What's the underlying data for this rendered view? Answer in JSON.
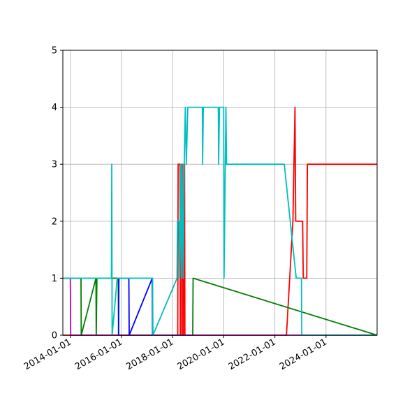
{
  "chart_data": {
    "type": "line",
    "title": "",
    "xlabel": "",
    "ylabel": "",
    "x_is_date": true,
    "xlim": [
      "2013-09-15",
      "2025-12-31"
    ],
    "ylim": [
      0,
      5
    ],
    "grid": true,
    "x_ticks": [
      "2014-01-01",
      "2016-01-01",
      "2018-01-01",
      "2020-01-01",
      "2022-01-01",
      "2024-01-01"
    ],
    "y_ticks": [
      0,
      1,
      2,
      3,
      4,
      5
    ],
    "series": [
      {
        "color": "#ff0000",
        "x": [
          "2013-09-15",
          "2018-03-15",
          "2018-03-20",
          "2018-04-15",
          "2018-04-20",
          "2018-05-01",
          "2018-05-05",
          "2018-05-20",
          "2018-05-25",
          "2018-06-05",
          "2018-06-10",
          "2018-06-20",
          "2018-06-25",
          "2022-06-15",
          "2022-09-15",
          "2022-10-15",
          "2022-10-25",
          "2023-02-01",
          "2023-02-10",
          "2023-04-01",
          "2023-04-10",
          "2025-12-31"
        ],
        "y": [
          0,
          0,
          3,
          3,
          0,
          0,
          3,
          3,
          0,
          0,
          3,
          3,
          0,
          0,
          2,
          4,
          2,
          2,
          1,
          1,
          3,
          3
        ]
      },
      {
        "color": "#008000",
        "x": [
          "2013-09-15",
          "2014-06-01",
          "2014-06-05",
          "2015-01-01",
          "2015-01-05",
          "2015-01-15",
          "2015-11-15",
          "2015-11-20",
          "2018-10-15",
          "2018-10-20",
          "2025-12-31"
        ],
        "y": [
          1,
          1,
          0,
          1,
          0,
          1,
          1,
          0,
          0,
          1,
          0
        ]
      },
      {
        "color": "#0000ff",
        "x": [
          "2015-11-20",
          "2015-11-25",
          "2016-04-15",
          "2016-04-20",
          "2017-03-15",
          "2017-03-20"
        ],
        "y": [
          0,
          1,
          1,
          0,
          1,
          0
        ]
      },
      {
        "color": "#bf00bf",
        "x": [
          "2013-09-15",
          "2013-12-31",
          "2014-01-05",
          "2025-12-31"
        ],
        "y": [
          1,
          1,
          0,
          0
        ]
      },
      {
        "color": "#00bfbf",
        "x": [
          "2013-09-15",
          "2015-08-10",
          "2015-08-15",
          "2015-08-20",
          "2015-11-01",
          "2017-03-20",
          "2017-03-25",
          "2018-03-05",
          "2018-03-10",
          "2018-04-01",
          "2018-04-10",
          "2018-04-25",
          "2018-05-05",
          "2018-05-15",
          "2018-06-01",
          "2018-06-15",
          "2018-07-01",
          "2018-07-15",
          "2018-08-05",
          "2018-08-15",
          "2019-03-01",
          "2019-03-05",
          "2019-03-15",
          "2019-10-15",
          "2019-10-20",
          "2019-11-01",
          "2019-12-31",
          "2020-01-05",
          "2020-02-01",
          "2020-02-10",
          "2022-05-15",
          "2022-11-01",
          "2023-01-15",
          "2023-01-20",
          "2025-12-31"
        ],
        "y": [
          1,
          1,
          3,
          0,
          1,
          1,
          0,
          1,
          2,
          2,
          1,
          3,
          1,
          3,
          1,
          3,
          4,
          3,
          4,
          4,
          4,
          3,
          4,
          4,
          3,
          4,
          4,
          1,
          4,
          3,
          3,
          1,
          1,
          0,
          0
        ]
      }
    ]
  }
}
